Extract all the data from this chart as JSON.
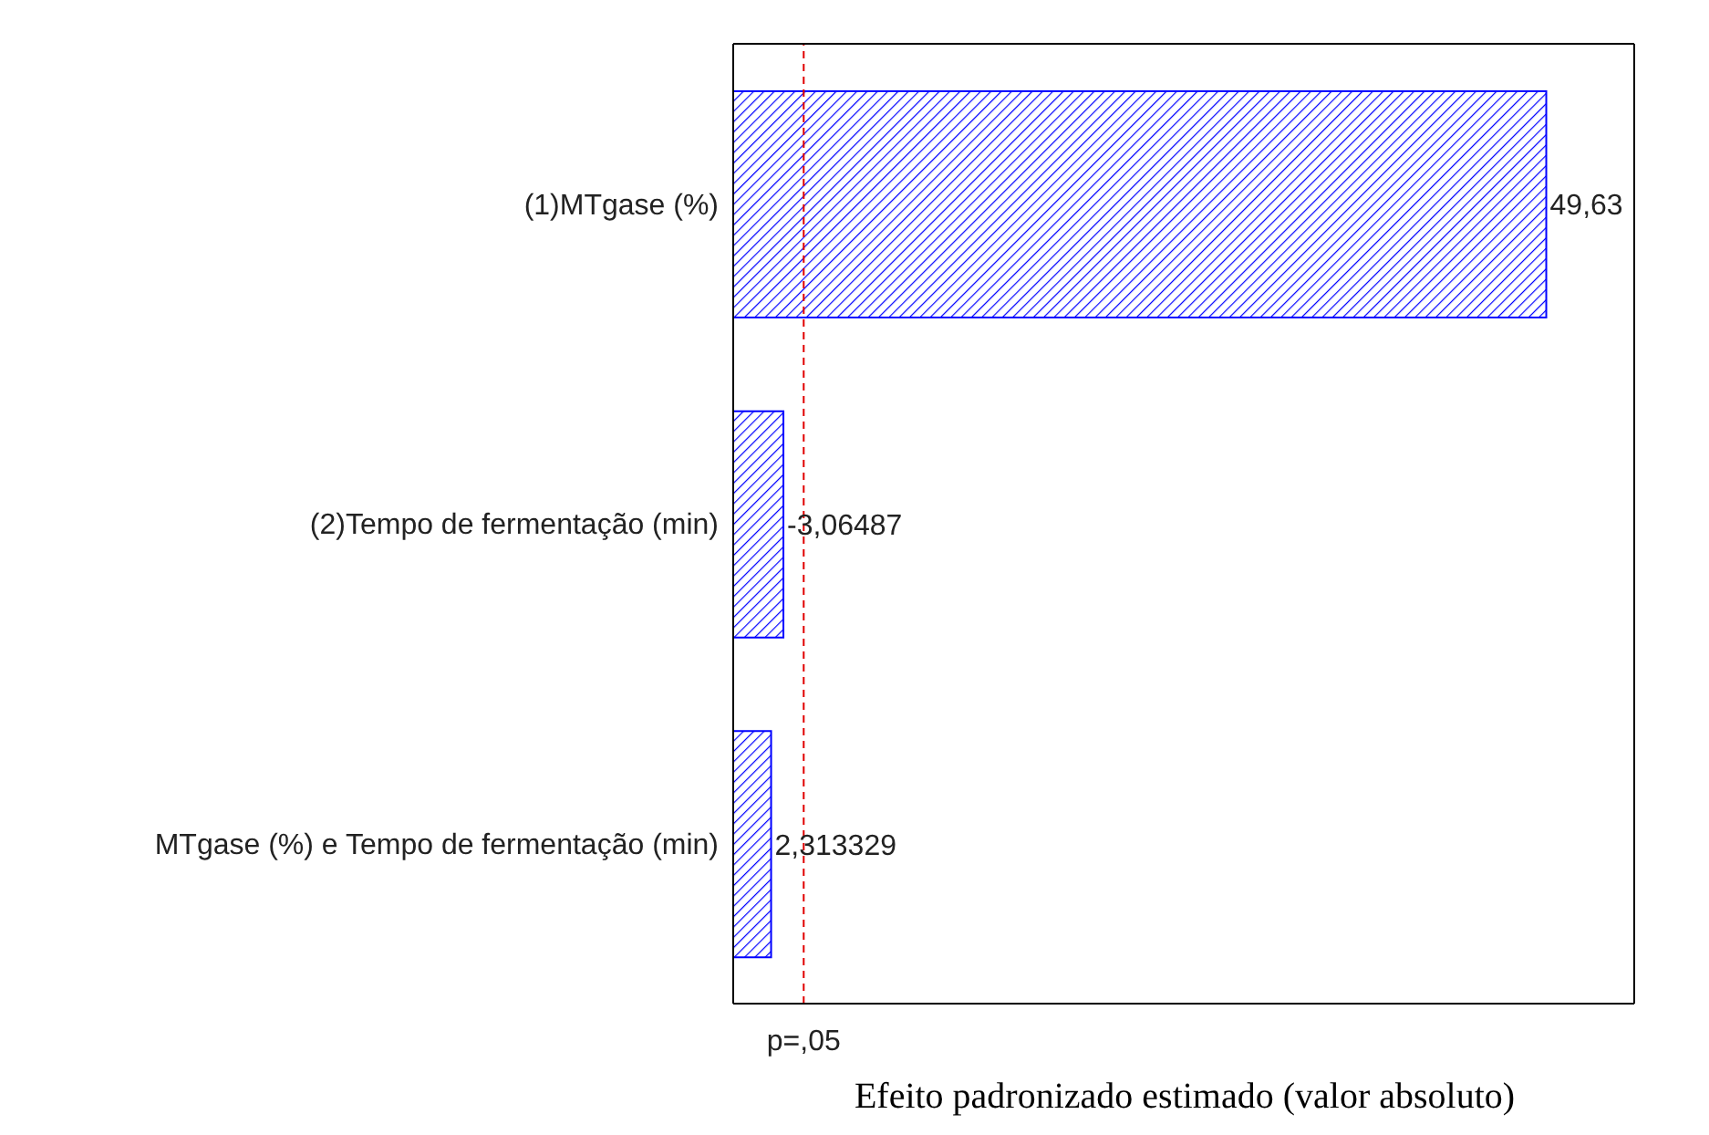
{
  "chart_data": {
    "type": "bar",
    "orientation": "horizontal",
    "xlabel": "Efeito padronizado estimado (valor absoluto)",
    "categories": [
      "(1)MTgase (%)",
      "(2)Tempo de fermentação (min)",
      "MTgase (%) e Tempo de fermentação (min)"
    ],
    "values": [
      49.63,
      3.06487,
      2.313329
    ],
    "value_labels": [
      "49,63",
      "-3,06487",
      "2,313329"
    ],
    "color": "#0000ff",
    "xlim": [
      0,
      55
    ],
    "ref_lines": [
      {
        "axis": "x",
        "value": 4.303,
        "label": "p=,05",
        "color": "#e00000",
        "line_style": "dashed"
      }
    ],
    "data_labels": false
  }
}
